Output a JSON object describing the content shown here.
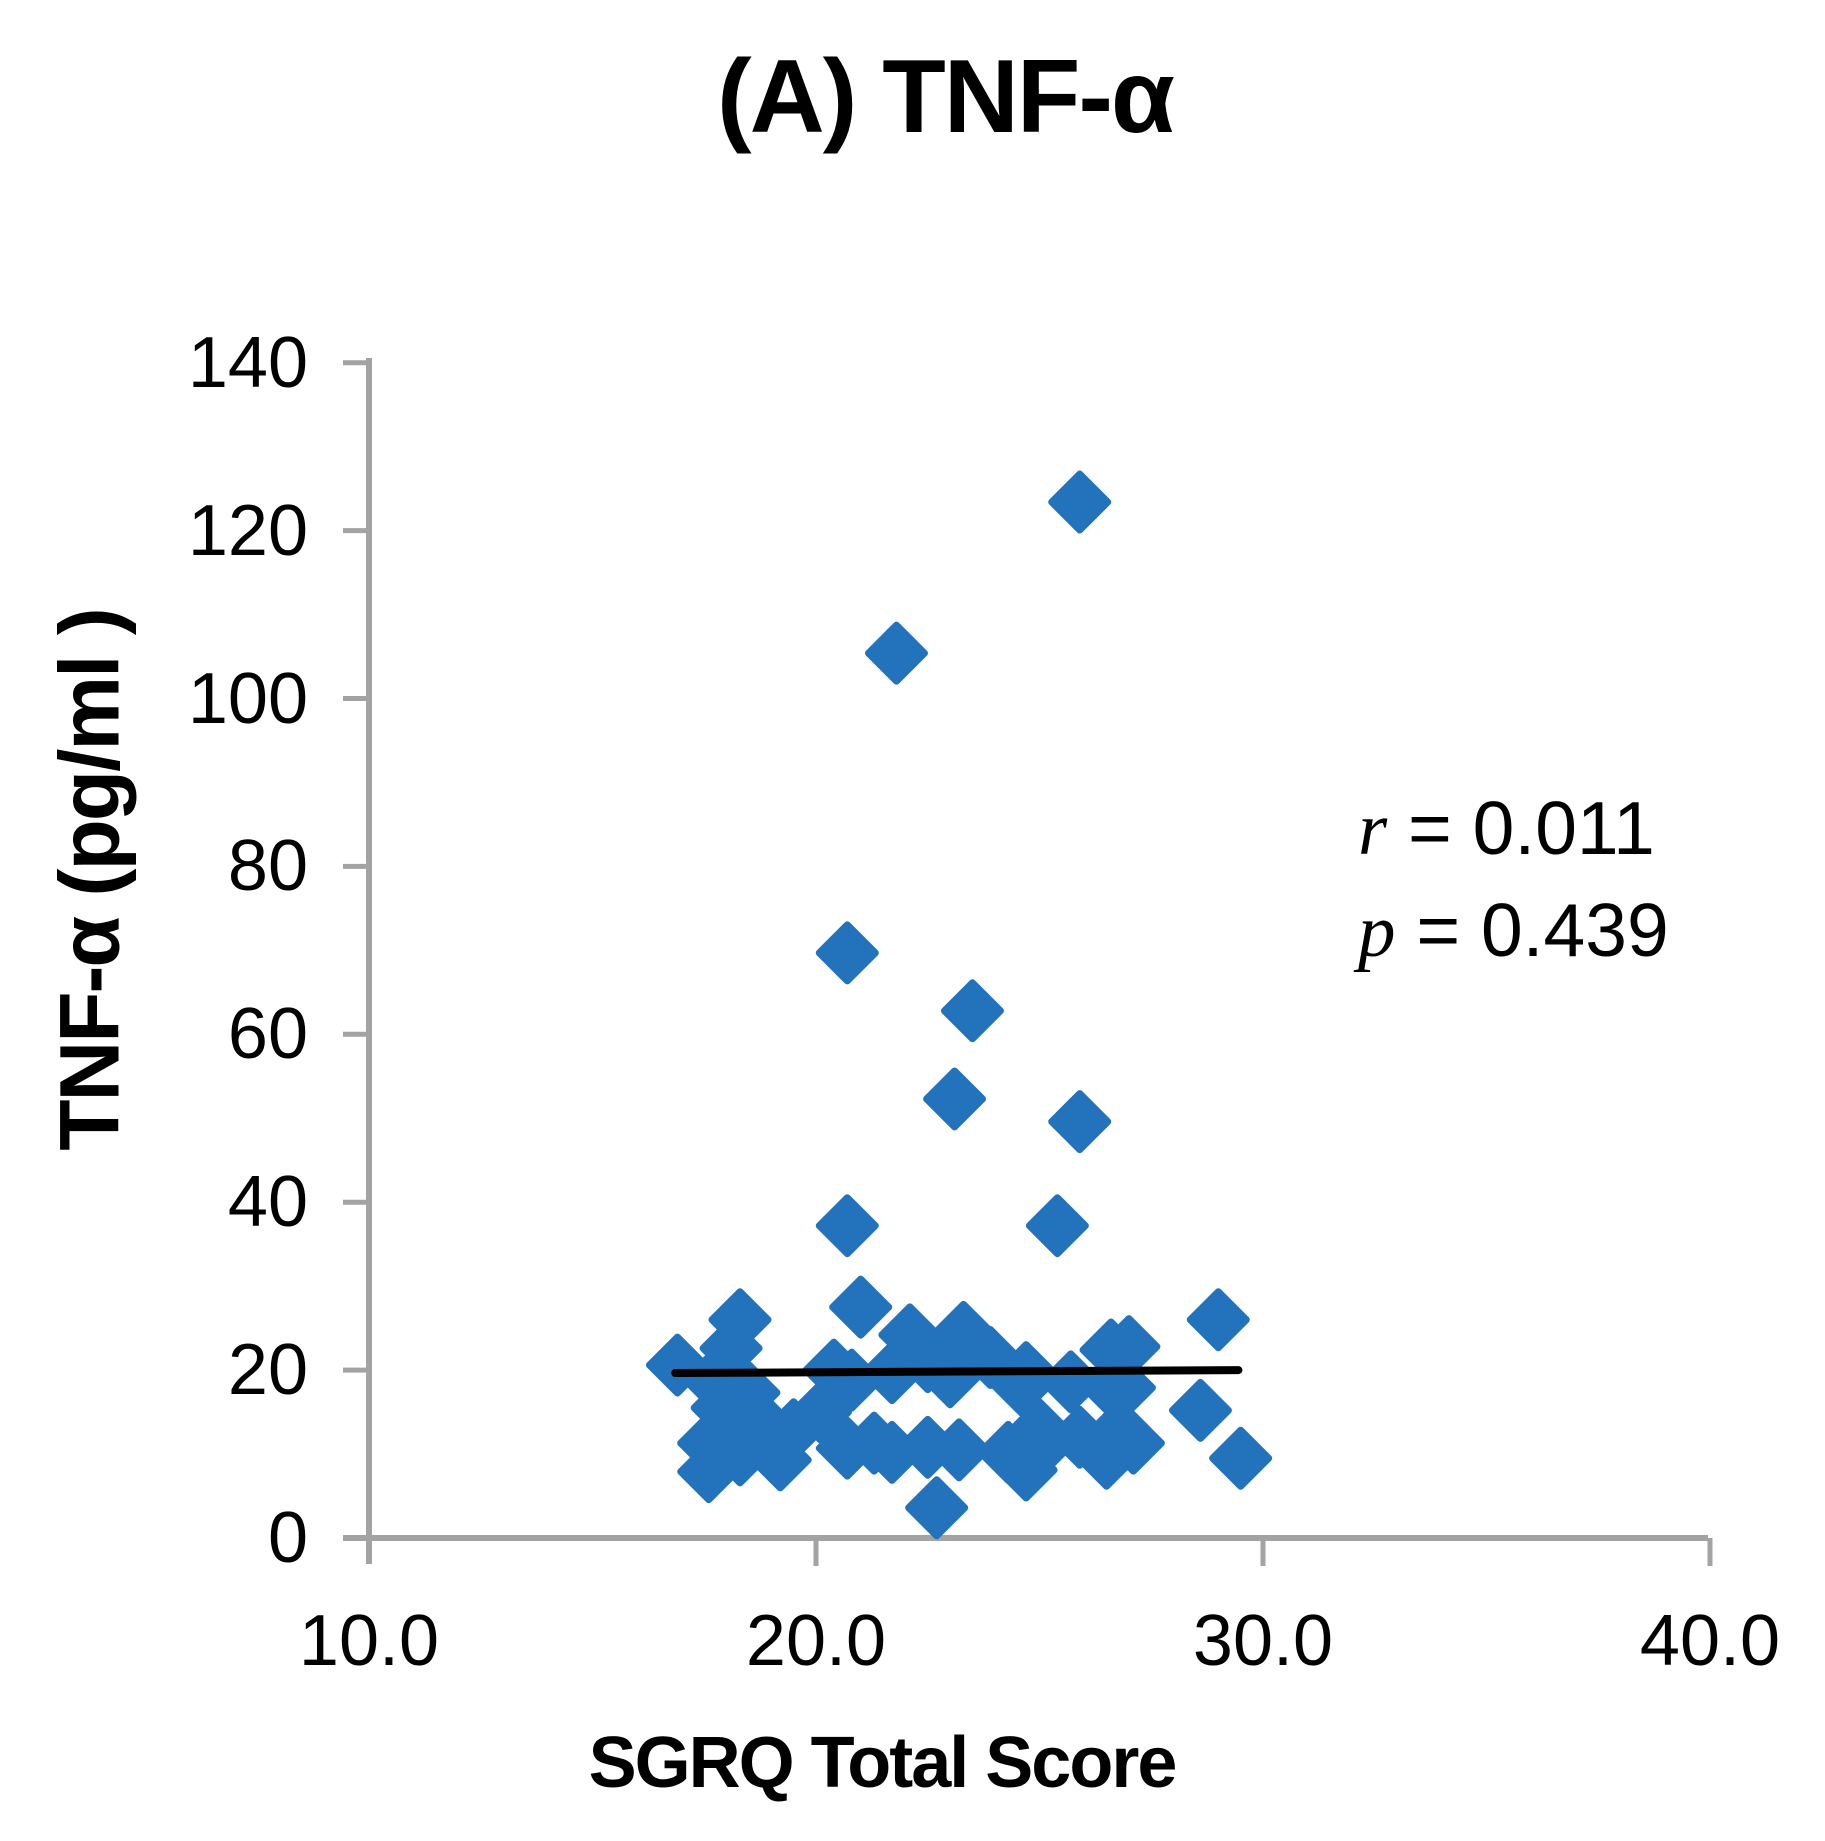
{
  "annotation": {
    "r_var": "r",
    "r_rest": " = 0.011",
    "p_var": "p",
    "p_rest": " = 0.439"
  },
  "chart_data": {
    "type": "scatter",
    "title": "(A) TNF-α",
    "xlabel": "SGRQ Total Score",
    "ylabel": "TNF-α (pg/ml )",
    "xlim": [
      10,
      40
    ],
    "ylim": [
      0,
      140
    ],
    "x_ticks": [
      {
        "v": 10,
        "label": "10.0"
      },
      {
        "v": 20,
        "label": "20.0"
      },
      {
        "v": 30,
        "label": "30.0"
      },
      {
        "v": 40,
        "label": "40.0"
      }
    ],
    "y_ticks": [
      {
        "v": 0,
        "label": "0"
      },
      {
        "v": 20,
        "label": "20"
      },
      {
        "v": 40,
        "label": "40"
      },
      {
        "v": 60,
        "label": "60"
      },
      {
        "v": 80,
        "label": "80"
      },
      {
        "v": 100,
        "label": "100"
      },
      {
        "v": 120,
        "label": "120"
      },
      {
        "v": 140,
        "label": "140"
      }
    ],
    "grid": false,
    "legend": "none",
    "marker": "diamond",
    "marker_color": "#2273BB",
    "axis_color": "#A3A3A3",
    "trend_line": {
      "x1": 16.85,
      "y1": 19.65,
      "x2": 29.45,
      "y2": 20.0,
      "color": "#000000"
    },
    "stats": {
      "r": 0.011,
      "p": 0.439
    },
    "points": [
      [
        25.9,
        123.4
      ],
      [
        21.8,
        105.4
      ],
      [
        20.7,
        69.7
      ],
      [
        23.5,
        62.8
      ],
      [
        23.1,
        52.3
      ],
      [
        25.9,
        49.6
      ],
      [
        20.7,
        37.2
      ],
      [
        25.4,
        37.2
      ],
      [
        21.0,
        27.5
      ],
      [
        18.3,
        26.0
      ],
      [
        29.0,
        26.0
      ],
      [
        23.3,
        24.5
      ],
      [
        22.1,
        24.2
      ],
      [
        27.0,
        22.8
      ],
      [
        26.6,
        22.4
      ],
      [
        18.1,
        22.6
      ],
      [
        16.9,
        20.6
      ],
      [
        17.7,
        18.8
      ],
      [
        20.4,
        20.0
      ],
      [
        20.8,
        18.8
      ],
      [
        21.7,
        19.7
      ],
      [
        22.5,
        21.0
      ],
      [
        23.0,
        19.2
      ],
      [
        23.9,
        21.5
      ],
      [
        24.7,
        19.7
      ],
      [
        24.6,
        18.2
      ],
      [
        25.7,
        18.6
      ],
      [
        26.6,
        18.0
      ],
      [
        26.9,
        17.9
      ],
      [
        18.5,
        17.3
      ],
      [
        17.9,
        15.5
      ],
      [
        20.1,
        15.0
      ],
      [
        18.9,
        13.2
      ],
      [
        19.5,
        12.9
      ],
      [
        25.0,
        12.9
      ],
      [
        25.9,
        12.0
      ],
      [
        26.8,
        12.9
      ],
      [
        27.1,
        11.3
      ],
      [
        28.6,
        15.2
      ],
      [
        17.6,
        11.3
      ],
      [
        18.3,
        9.9
      ],
      [
        19.2,
        9.3
      ],
      [
        20.7,
        10.7
      ],
      [
        21.3,
        11.3
      ],
      [
        21.7,
        10.2
      ],
      [
        22.5,
        10.8
      ],
      [
        23.2,
        10.5
      ],
      [
        24.3,
        10.2
      ],
      [
        24.9,
        10.1
      ],
      [
        26.5,
        9.5
      ],
      [
        24.7,
        8.1
      ],
      [
        17.6,
        7.9
      ],
      [
        29.5,
        9.5
      ],
      [
        22.7,
        3.6
      ]
    ]
  }
}
